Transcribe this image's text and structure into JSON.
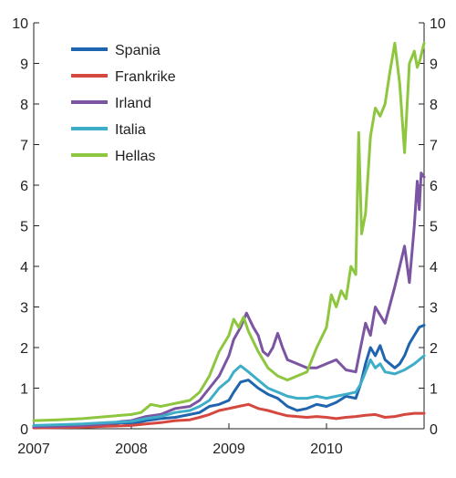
{
  "chart_data": {
    "type": "line",
    "title": "",
    "xlabel": "",
    "ylabel": "",
    "ylim": [
      0,
      10
    ],
    "yticks": [
      0,
      1,
      2,
      3,
      4,
      5,
      6,
      7,
      8,
      9,
      10
    ],
    "xlim": [
      2007,
      2011
    ],
    "xticks": [
      2007,
      2008,
      2009,
      2010
    ],
    "grid": false,
    "legend": "top-left",
    "series": [
      {
        "name": "Spania",
        "color": "#1f64ae",
        "points": [
          [
            2007.0,
            0.03
          ],
          [
            2007.25,
            0.04
          ],
          [
            2007.5,
            0.06
          ],
          [
            2007.75,
            0.1
          ],
          [
            2007.9,
            0.15
          ],
          [
            2008.0,
            0.12
          ],
          [
            2008.15,
            0.2
          ],
          [
            2008.3,
            0.25
          ],
          [
            2008.45,
            0.28
          ],
          [
            2008.6,
            0.35
          ],
          [
            2008.7,
            0.4
          ],
          [
            2008.8,
            0.55
          ],
          [
            2008.9,
            0.6
          ],
          [
            2009.0,
            0.7
          ],
          [
            2009.05,
            0.9
          ],
          [
            2009.12,
            1.15
          ],
          [
            2009.2,
            1.2
          ],
          [
            2009.3,
            1.0
          ],
          [
            2009.4,
            0.85
          ],
          [
            2009.5,
            0.75
          ],
          [
            2009.6,
            0.55
          ],
          [
            2009.7,
            0.45
          ],
          [
            2009.8,
            0.5
          ],
          [
            2009.9,
            0.6
          ],
          [
            2010.0,
            0.55
          ],
          [
            2010.1,
            0.65
          ],
          [
            2010.2,
            0.8
          ],
          [
            2010.3,
            0.75
          ],
          [
            2010.35,
            1.1
          ],
          [
            2010.4,
            1.6
          ],
          [
            2010.45,
            2.0
          ],
          [
            2010.5,
            1.8
          ],
          [
            2010.55,
            2.05
          ],
          [
            2010.6,
            1.7
          ],
          [
            2010.7,
            1.5
          ],
          [
            2010.75,
            1.6
          ],
          [
            2010.8,
            1.8
          ],
          [
            2010.85,
            2.1
          ],
          [
            2010.9,
            2.3
          ],
          [
            2010.95,
            2.5
          ],
          [
            2011.0,
            2.55
          ]
        ]
      },
      {
        "name": "Frankrike",
        "color": "#d54840",
        "points": [
          [
            2007.0,
            0.02
          ],
          [
            2007.25,
            0.03
          ],
          [
            2007.5,
            0.04
          ],
          [
            2007.75,
            0.06
          ],
          [
            2008.0,
            0.08
          ],
          [
            2008.15,
            0.12
          ],
          [
            2008.3,
            0.15
          ],
          [
            2008.45,
            0.2
          ],
          [
            2008.6,
            0.22
          ],
          [
            2008.7,
            0.28
          ],
          [
            2008.8,
            0.35
          ],
          [
            2008.9,
            0.45
          ],
          [
            2009.0,
            0.5
          ],
          [
            2009.1,
            0.55
          ],
          [
            2009.2,
            0.6
          ],
          [
            2009.3,
            0.5
          ],
          [
            2009.4,
            0.45
          ],
          [
            2009.5,
            0.38
          ],
          [
            2009.6,
            0.32
          ],
          [
            2009.7,
            0.3
          ],
          [
            2009.8,
            0.28
          ],
          [
            2009.9,
            0.3
          ],
          [
            2010.0,
            0.28
          ],
          [
            2010.1,
            0.25
          ],
          [
            2010.2,
            0.28
          ],
          [
            2010.3,
            0.3
          ],
          [
            2010.4,
            0.33
          ],
          [
            2010.5,
            0.35
          ],
          [
            2010.6,
            0.28
          ],
          [
            2010.7,
            0.3
          ],
          [
            2010.8,
            0.35
          ],
          [
            2010.9,
            0.38
          ],
          [
            2011.0,
            0.38
          ]
        ]
      },
      {
        "name": "Irland",
        "color": "#7b55a2",
        "points": [
          [
            2007.0,
            0.05
          ],
          [
            2007.25,
            0.06
          ],
          [
            2007.5,
            0.08
          ],
          [
            2007.75,
            0.12
          ],
          [
            2007.9,
            0.18
          ],
          [
            2008.0,
            0.2
          ],
          [
            2008.15,
            0.3
          ],
          [
            2008.3,
            0.35
          ],
          [
            2008.45,
            0.5
          ],
          [
            2008.6,
            0.55
          ],
          [
            2008.7,
            0.7
          ],
          [
            2008.8,
            1.0
          ],
          [
            2008.9,
            1.3
          ],
          [
            2009.0,
            1.8
          ],
          [
            2009.05,
            2.2
          ],
          [
            2009.12,
            2.5
          ],
          [
            2009.18,
            2.85
          ],
          [
            2009.25,
            2.5
          ],
          [
            2009.3,
            2.3
          ],
          [
            2009.35,
            1.9
          ],
          [
            2009.4,
            1.8
          ],
          [
            2009.45,
            2.0
          ],
          [
            2009.5,
            2.35
          ],
          [
            2009.55,
            2.0
          ],
          [
            2009.6,
            1.7
          ],
          [
            2009.7,
            1.6
          ],
          [
            2009.8,
            1.5
          ],
          [
            2009.9,
            1.5
          ],
          [
            2010.0,
            1.6
          ],
          [
            2010.1,
            1.7
          ],
          [
            2010.2,
            1.45
          ],
          [
            2010.3,
            1.4
          ],
          [
            2010.35,
            2.0
          ],
          [
            2010.4,
            2.6
          ],
          [
            2010.45,
            2.3
          ],
          [
            2010.5,
            3.0
          ],
          [
            2010.55,
            2.8
          ],
          [
            2010.6,
            2.6
          ],
          [
            2010.7,
            3.5
          ],
          [
            2010.75,
            4.0
          ],
          [
            2010.8,
            4.5
          ],
          [
            2010.85,
            3.6
          ],
          [
            2010.9,
            5.0
          ],
          [
            2010.93,
            6.1
          ],
          [
            2010.95,
            5.4
          ],
          [
            2010.97,
            6.3
          ],
          [
            2011.0,
            6.2
          ]
        ]
      },
      {
        "name": "Italia",
        "color": "#3eaec8",
        "points": [
          [
            2007.0,
            0.08
          ],
          [
            2007.25,
            0.1
          ],
          [
            2007.5,
            0.12
          ],
          [
            2007.75,
            0.15
          ],
          [
            2008.0,
            0.18
          ],
          [
            2008.15,
            0.25
          ],
          [
            2008.3,
            0.3
          ],
          [
            2008.45,
            0.4
          ],
          [
            2008.6,
            0.45
          ],
          [
            2008.7,
            0.55
          ],
          [
            2008.8,
            0.7
          ],
          [
            2008.9,
            1.0
          ],
          [
            2009.0,
            1.2
          ],
          [
            2009.05,
            1.4
          ],
          [
            2009.12,
            1.55
          ],
          [
            2009.2,
            1.4
          ],
          [
            2009.3,
            1.2
          ],
          [
            2009.4,
            1.0
          ],
          [
            2009.5,
            0.9
          ],
          [
            2009.6,
            0.8
          ],
          [
            2009.7,
            0.75
          ],
          [
            2009.8,
            0.75
          ],
          [
            2009.9,
            0.8
          ],
          [
            2010.0,
            0.75
          ],
          [
            2010.1,
            0.8
          ],
          [
            2010.2,
            0.85
          ],
          [
            2010.3,
            0.9
          ],
          [
            2010.35,
            1.1
          ],
          [
            2010.4,
            1.4
          ],
          [
            2010.45,
            1.7
          ],
          [
            2010.5,
            1.5
          ],
          [
            2010.55,
            1.6
          ],
          [
            2010.6,
            1.4
          ],
          [
            2010.7,
            1.35
          ],
          [
            2010.8,
            1.45
          ],
          [
            2010.9,
            1.6
          ],
          [
            2010.95,
            1.7
          ],
          [
            2011.0,
            1.8
          ]
        ]
      },
      {
        "name": "Hellas",
        "color": "#8ec63f",
        "points": [
          [
            2007.0,
            0.2
          ],
          [
            2007.25,
            0.22
          ],
          [
            2007.5,
            0.25
          ],
          [
            2007.75,
            0.3
          ],
          [
            2008.0,
            0.35
          ],
          [
            2008.1,
            0.4
          ],
          [
            2008.2,
            0.6
          ],
          [
            2008.3,
            0.55
          ],
          [
            2008.4,
            0.6
          ],
          [
            2008.5,
            0.65
          ],
          [
            2008.6,
            0.7
          ],
          [
            2008.7,
            0.9
          ],
          [
            2008.8,
            1.3
          ],
          [
            2008.9,
            1.9
          ],
          [
            2009.0,
            2.3
          ],
          [
            2009.05,
            2.7
          ],
          [
            2009.1,
            2.5
          ],
          [
            2009.15,
            2.75
          ],
          [
            2009.2,
            2.4
          ],
          [
            2009.3,
            1.9
          ],
          [
            2009.4,
            1.5
          ],
          [
            2009.5,
            1.3
          ],
          [
            2009.6,
            1.2
          ],
          [
            2009.7,
            1.3
          ],
          [
            2009.8,
            1.4
          ],
          [
            2009.9,
            2.0
          ],
          [
            2010.0,
            2.5
          ],
          [
            2010.05,
            3.3
          ],
          [
            2010.1,
            3.0
          ],
          [
            2010.15,
            3.4
          ],
          [
            2010.2,
            3.2
          ],
          [
            2010.25,
            4.0
          ],
          [
            2010.3,
            3.8
          ],
          [
            2010.33,
            7.3
          ],
          [
            2010.36,
            4.8
          ],
          [
            2010.4,
            5.3
          ],
          [
            2010.45,
            7.2
          ],
          [
            2010.5,
            7.9
          ],
          [
            2010.55,
            7.7
          ],
          [
            2010.6,
            8.0
          ],
          [
            2010.65,
            8.8
          ],
          [
            2010.7,
            9.5
          ],
          [
            2010.75,
            8.5
          ],
          [
            2010.8,
            6.8
          ],
          [
            2010.85,
            9.0
          ],
          [
            2010.9,
            9.3
          ],
          [
            2010.93,
            8.9
          ],
          [
            2010.96,
            9.1
          ],
          [
            2011.0,
            9.5
          ]
        ]
      }
    ]
  }
}
